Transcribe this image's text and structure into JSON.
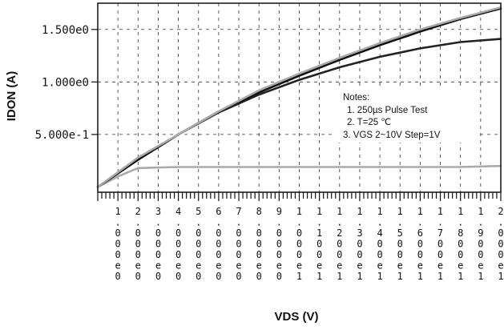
{
  "chart_data": {
    "type": "line",
    "xlabel": "VDS (V)",
    "ylabel": "IDON (A)",
    "xlim": [
      0,
      20
    ],
    "ylim": [
      -0.05,
      1.75
    ],
    "x_ticks": [
      1,
      2,
      3,
      4,
      5,
      6,
      7,
      8,
      9,
      10,
      11,
      12,
      13,
      14,
      15,
      16,
      17,
      18,
      19,
      20
    ],
    "x_tick_labels": [
      "1.000e0",
      "2.000e0",
      "3.000e0",
      "4.000e0",
      "5.000e0",
      "6.000e0",
      "7.000e0",
      "8.000e0",
      "9.000e0",
      "1.000e1",
      "1.100e1",
      "1.200e1",
      "1.300e1",
      "1.400e1",
      "1.500e1",
      "1.600e1",
      "1.700e1",
      "1.800e1",
      "1.900e1",
      "2.000e1"
    ],
    "y_ticks": [
      0.5,
      1.0,
      1.5
    ],
    "y_tick_labels": [
      "5.000e-1",
      "1.000e0",
      "1.500e0"
    ],
    "grid": true,
    "series": [
      {
        "color": "#aaaaaa",
        "x": [
          0,
          1,
          2,
          4,
          6,
          8,
          10,
          12,
          14,
          16,
          18,
          20
        ],
        "y": [
          0,
          0.1,
          0.18,
          0.19,
          0.19,
          0.19,
          0.19,
          0.19,
          0.19,
          0.19,
          0.19,
          0.2
        ]
      },
      {
        "color": "#222222",
        "x": [
          0,
          2,
          4,
          6,
          8,
          10,
          12,
          14,
          16,
          18,
          20
        ],
        "y": [
          0,
          0.26,
          0.5,
          0.71,
          0.88,
          1.02,
          1.14,
          1.24,
          1.32,
          1.38,
          1.41
        ]
      },
      {
        "color": "#111111",
        "x": [
          0,
          2,
          4,
          6,
          8,
          10,
          12,
          14,
          16,
          18,
          20
        ],
        "y": [
          0,
          0.26,
          0.5,
          0.72,
          0.9,
          1.06,
          1.21,
          1.35,
          1.48,
          1.6,
          1.7
        ]
      },
      {
        "color": "#aaaaaa",
        "x": [
          0,
          2,
          4,
          6,
          8,
          10,
          12,
          14,
          16,
          18,
          20
        ],
        "y": [
          0,
          0.28,
          0.5,
          0.72,
          0.92,
          1.08,
          1.23,
          1.37,
          1.5,
          1.61,
          1.71
        ]
      }
    ],
    "notes": {
      "title": "Notes:",
      "lines": [
        "1. 250µs  Pulse Test",
        "2. T=25 ℃",
        "3. VGS  2~10V  Step=1V"
      ]
    }
  }
}
